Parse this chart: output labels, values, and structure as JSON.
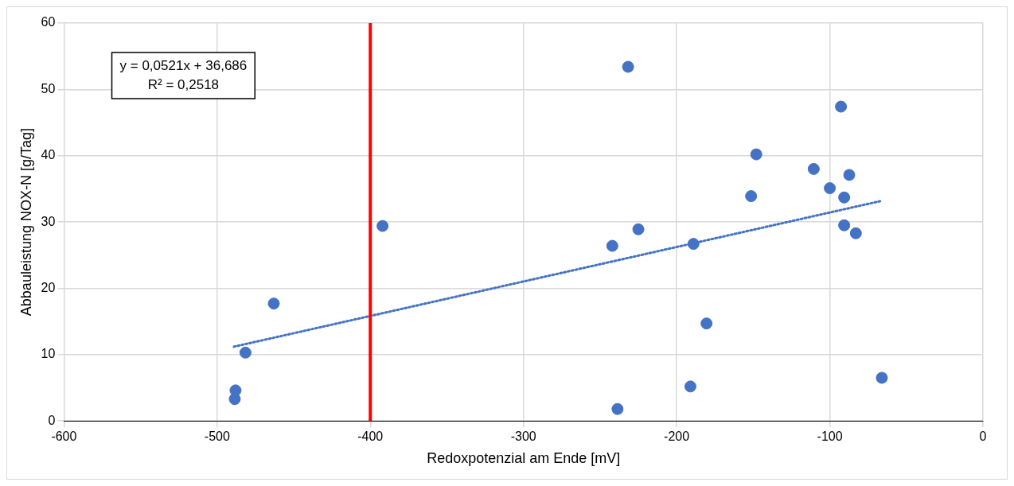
{
  "chart_data": {
    "type": "scatter",
    "xlabel": "Redoxpotenzial am Ende [mV]",
    "ylabel": "Abbauleistung NOX-N [g/Tag]",
    "xlim": [
      -600,
      0
    ],
    "xticks": [
      -600,
      -500,
      -400,
      -300,
      -200,
      -100,
      0
    ],
    "ylim": [
      0,
      60
    ],
    "yticks": [
      0,
      10,
      20,
      30,
      40,
      50,
      60
    ],
    "grid": true,
    "legend": false,
    "marker": "circle",
    "annotations": [
      "y = 0,0521x + 36,686",
      "R² = 0,2518"
    ],
    "ref_lines": [
      {
        "axis": "x",
        "value": -400,
        "color": "#ff0000",
        "line_style": "solid"
      }
    ],
    "x": [
      -488.5,
      -488,
      -481.5,
      -463,
      -392,
      -238.6,
      -242,
      -231.7,
      -225,
      -191,
      -189,
      -180.5,
      -151.4,
      -148,
      -110.5,
      -100,
      -90.6,
      -90.6,
      -87.3,
      -92.7,
      -83,
      -66
    ],
    "series": [
      {
        "color": "#4472c4",
        "values": [
          3.3,
          4.6,
          10.3,
          17.7,
          29.4,
          1.8,
          26.4,
          53.4,
          28.9,
          5.2,
          26.7,
          14.7,
          33.9,
          40.2,
          38.0,
          35.1,
          33.7,
          29.5,
          37.1,
          47.4,
          28.3,
          6.5
        ]
      },
      {
        "type": "line",
        "color": "#4472c4",
        "line_style": "dotted",
        "marker": "none",
        "x": [
          -489,
          -66
        ],
        "values": [
          11.2,
          33.2
        ]
      }
    ]
  }
}
